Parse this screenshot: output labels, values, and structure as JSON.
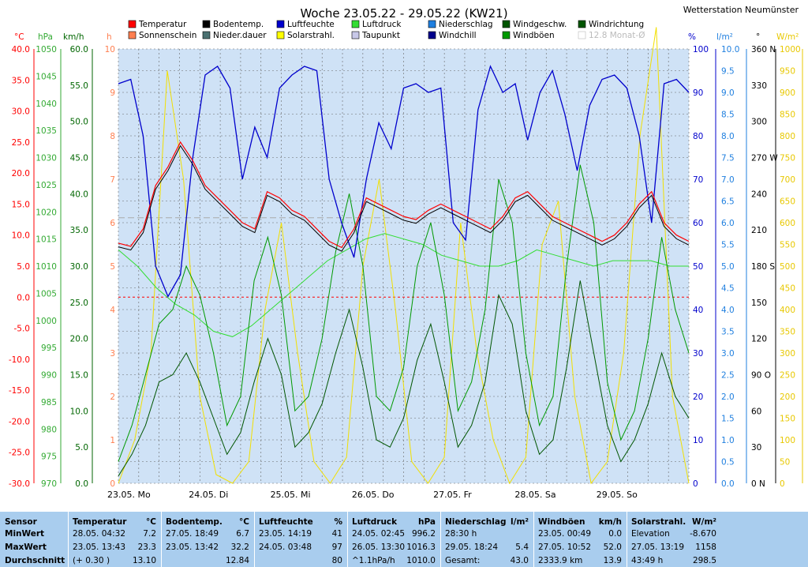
{
  "chart_data": {
    "type": "line",
    "title": "Woche 23.05.22 - 29.05.22 (KW21)",
    "station": "Wetterstation Neumünster",
    "x_labels": [
      "23.05. Mo",
      "24.05. Di",
      "25.05. Mi",
      "26.05. Do",
      "27.05. Fr",
      "28.05. Sa",
      "29.05. So"
    ],
    "legend": [
      {
        "name": "Temperatur",
        "color": "#ff0000"
      },
      {
        "name": "Sonnenschein",
        "color": "#ff7f50"
      },
      {
        "name": "Bodentemp.",
        "color": "#000000"
      },
      {
        "name": "Nieder.dauer",
        "color": "#4a7070"
      },
      {
        "name": "Luftfeuchte",
        "color": "#0000cc"
      },
      {
        "name": "Solarstrahl.",
        "color": "#ffff00"
      },
      {
        "name": "Luftdruck",
        "color": "#33dd33"
      },
      {
        "name": "Taupunkt",
        "color": "#c8c8e8"
      },
      {
        "name": "Niederschlag",
        "color": "#1f7fdf"
      },
      {
        "name": "Windchill",
        "color": "#00008b"
      },
      {
        "name": "Windgeschw.",
        "color": "#005500"
      },
      {
        "name": "Windböen",
        "color": "#009900"
      },
      {
        "name": "Windrichtung",
        "color": "#005500"
      },
      {
        "name": "12.8 Monat-Ø",
        "color": "#bbbbbb"
      }
    ],
    "axes": {
      "temp": {
        "unit": "°C",
        "color": "#ff0000",
        "ticks": [
          "40.0",
          "35.0",
          "30.0",
          "25.0",
          "20.0",
          "15.0",
          "10.0",
          "5.0",
          "0.0",
          "-5.0",
          "-10.0",
          "-15.0",
          "-20.0",
          "-25.0",
          "-30.0"
        ]
      },
      "press": {
        "unit": "hPa",
        "color": "#33aa33",
        "ticks": [
          "1050",
          "1045",
          "1040",
          "1035",
          "1030",
          "1025",
          "1020",
          "1015",
          "1010",
          "1005",
          "1000",
          "995",
          "990",
          "985",
          "980",
          "975",
          "970"
        ]
      },
      "wind": {
        "unit": "km/h",
        "color": "#006600",
        "ticks": [
          "60.0",
          "55.0",
          "50.0",
          "45.0",
          "40.0",
          "35.0",
          "30.0",
          "25.0",
          "20.0",
          "15.0",
          "10.0",
          "5.0",
          "0.0"
        ]
      },
      "hours": {
        "unit": "h",
        "color": "#ff7f50",
        "ticks": [
          "10",
          "9",
          "8",
          "7",
          "6",
          "5",
          "4",
          "3",
          "2",
          "1",
          "0"
        ]
      },
      "hum": {
        "unit": "%",
        "color": "#0000cc",
        "ticks": [
          "100",
          "90",
          "80",
          "70",
          "60",
          "50",
          "40",
          "30",
          "20",
          "10",
          "0"
        ]
      },
      "rain": {
        "unit": "l/m²",
        "color": "#1f7fdf",
        "ticks": [
          "10.0",
          "9.5",
          "9.0",
          "8.5",
          "8.0",
          "7.5",
          "7.0",
          "6.5",
          "6.0",
          "5.5",
          "5.0",
          "4.5",
          "4.0",
          "3.5",
          "3.0",
          "2.5",
          "2.0",
          "1.5",
          "1.0",
          "0.5",
          "0.0"
        ]
      },
      "dir": {
        "unit": "°",
        "color": "#000000",
        "ticks": [
          "360 N",
          "330",
          "300",
          "270 W",
          "240",
          "210",
          "180 S",
          "150",
          "120",
          "90 O",
          "60",
          "30",
          "0 N"
        ]
      },
      "solar": {
        "unit": "W/m²",
        "color": "#e8c800",
        "ticks": [
          "1000",
          "950",
          "900",
          "850",
          "800",
          "750",
          "700",
          "650",
          "600",
          "550",
          "500",
          "450",
          "400",
          "350",
          "300",
          "250",
          "200",
          "150",
          "100",
          "50",
          "0"
        ]
      }
    },
    "series": {
      "temperature_c": [
        8.7,
        8.2,
        11,
        18,
        21,
        25,
        22,
        18,
        16,
        14,
        12,
        11,
        17,
        16,
        14,
        13,
        11,
        9,
        8,
        11,
        16,
        15,
        14,
        13,
        12.5,
        14,
        15,
        14,
        13,
        12,
        11,
        13,
        16,
        17,
        15,
        13,
        12,
        11,
        10,
        9,
        10,
        12,
        15,
        17,
        12,
        10,
        9
      ],
      "humidity_pct": [
        92,
        93,
        80,
        50,
        43,
        48,
        75,
        94,
        96,
        91,
        70,
        82,
        75,
        91,
        94,
        96,
        95,
        70,
        60,
        52,
        70,
        83,
        77,
        91,
        92,
        90,
        91,
        60,
        56,
        86,
        96,
        90,
        92,
        79,
        90,
        95,
        85,
        72,
        87,
        93,
        94,
        91,
        80,
        60,
        92,
        93,
        90
      ],
      "pressure_hpa": [
        1013,
        1010,
        1006,
        1003,
        1001,
        998,
        997,
        999,
        1002,
        1005,
        1008,
        1011,
        1013,
        1015,
        1016,
        1015,
        1014,
        1012,
        1011,
        1010,
        1010,
        1011,
        1013,
        1012,
        1011,
        1010,
        1011,
        1011,
        1011,
        1010,
        1010
      ],
      "solar_wm2": [
        0,
        100,
        300,
        950,
        700,
        200,
        20,
        0,
        50,
        400,
        600,
        300,
        50,
        0,
        60,
        500,
        700,
        400,
        50,
        0,
        60,
        600,
        300,
        100,
        0,
        60,
        550,
        650,
        200,
        0,
        50,
        300,
        800,
        1050,
        200,
        0
      ],
      "wind_gust_kmh": [
        3,
        8,
        15,
        22,
        24,
        30,
        26,
        18,
        8,
        12,
        28,
        34,
        26,
        10,
        12,
        20,
        32,
        40,
        30,
        12,
        10,
        16,
        30,
        36,
        26,
        10,
        14,
        24,
        42,
        36,
        18,
        8,
        12,
        30,
        44,
        36,
        14,
        6,
        10,
        20,
        34,
        24,
        18
      ],
      "wind_speed_kmh": [
        1,
        4,
        8,
        14,
        15,
        18,
        14,
        9,
        4,
        7,
        14,
        20,
        15,
        5,
        7,
        11,
        18,
        24,
        16,
        6,
        5,
        9,
        17,
        22,
        14,
        5,
        8,
        14,
        26,
        22,
        10,
        4,
        6,
        16,
        28,
        18,
        8,
        3,
        6,
        11,
        18,
        12,
        9
      ]
    },
    "series_scale": {
      "temp": [
        -30,
        40
      ],
      "hum": [
        0,
        100
      ],
      "press": [
        970,
        1050
      ],
      "solar": [
        0,
        1000
      ],
      "wind": [
        0,
        60
      ]
    }
  },
  "stats": {
    "headers": {
      "sensor": "Sensor",
      "min": "MinWert",
      "max": "MaxWert",
      "avg": "Durchschnitt"
    },
    "columns": [
      {
        "title": "Temperatur",
        "unit": "°C",
        "rows": [
          [
            "28.05.  04:32",
            "7.2"
          ],
          [
            "23.05.  13:43",
            "23.3"
          ],
          [
            "(+ 0.30 )",
            "13.10"
          ]
        ]
      },
      {
        "title": "Bodentemp.",
        "unit": "°C",
        "rows": [
          [
            "27.05.  18:49",
            "6.7"
          ],
          [
            "23.05.  13:42",
            "32.2"
          ],
          [
            "",
            "12.84"
          ]
        ]
      },
      {
        "title": "Luftfeuchte",
        "unit": "%",
        "rows": [
          [
            "23.05.  14:19",
            "41"
          ],
          [
            "24.05.  03:48",
            "97"
          ],
          [
            "",
            "80"
          ]
        ]
      },
      {
        "title": "Luftdruck",
        "unit": "hPa",
        "rows": [
          [
            "24.05.  02:45",
            "996.2"
          ],
          [
            "26.05.  13:30",
            "1016.3"
          ],
          [
            "^1.1hPa/h",
            "1010.0"
          ]
        ]
      },
      {
        "title": "Niederschlag",
        "unit": "l/m²",
        "rows": [
          [
            "28:30 h",
            ""
          ],
          [
            "29.05.  18:24",
            "5.4"
          ],
          [
            "Gesamt:",
            "43.0"
          ]
        ]
      },
      {
        "title": "Windböen",
        "unit": "km/h",
        "rows": [
          [
            "23.05.  00:49",
            "0.0"
          ],
          [
            "27.05.  10:52",
            "52.0"
          ],
          [
            "2333.9 km",
            "13.9"
          ]
        ]
      },
      {
        "title": "Solarstrahl.",
        "unit": "W/m²",
        "rows": [
          [
            "Elevation",
            "-8.670"
          ],
          [
            "27.05.  13:19",
            "1158"
          ],
          [
            "43:49 h",
            "298.5"
          ]
        ]
      }
    ]
  }
}
